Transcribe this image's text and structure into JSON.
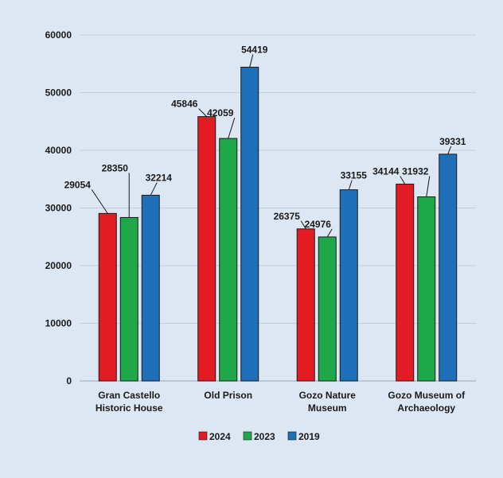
{
  "chart_data": {
    "type": "bar",
    "categories": [
      [
        "Gran Castello",
        "Historic House"
      ],
      [
        "Old Prison"
      ],
      [
        "Gozo Nature",
        "Museum"
      ],
      [
        "Gozo Museum of",
        "Archaeology"
      ]
    ],
    "series": [
      {
        "name": "2024",
        "color": "#e31b23",
        "values": [
          29054,
          45846,
          26375,
          34144
        ]
      },
      {
        "name": "2023",
        "color": "#1fa84a",
        "values": [
          28350,
          42059,
          24976,
          31932
        ]
      },
      {
        "name": "2019",
        "color": "#1f6fb8",
        "values": [
          32214,
          54419,
          33155,
          39331
        ]
      }
    ],
    "ylim": [
      0,
      60000
    ],
    "yticks": [
      "0",
      "10000",
      "20000",
      "30000",
      "40000",
      "50000",
      "60000"
    ],
    "grid": true,
    "legend_position": "bottom",
    "title": "",
    "xlabel": "",
    "ylabel": ""
  }
}
